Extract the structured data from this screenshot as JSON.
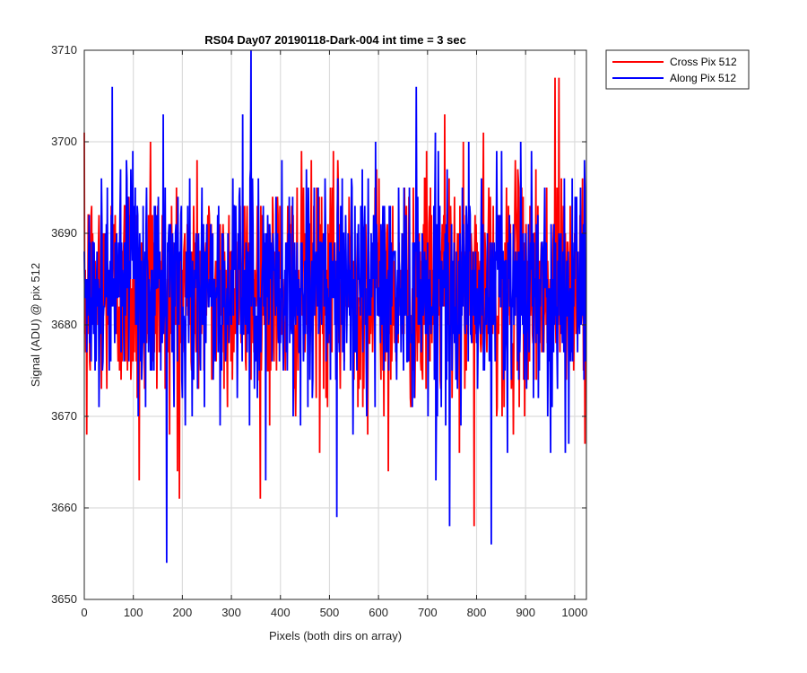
{
  "chart_data": {
    "type": "line",
    "title": "RS04 Day07 20190118-Dark-004 int time = 3 sec",
    "xlabel": "Pixels (both dirs on array)",
    "ylabel": "Signal (ADU) @ pix 512",
    "xlim": [
      0,
      1024
    ],
    "ylim": [
      3650,
      3710
    ],
    "xticks": [
      0,
      100,
      200,
      300,
      400,
      500,
      600,
      700,
      800,
      900,
      1000
    ],
    "yticks": [
      3650,
      3660,
      3670,
      3680,
      3690,
      3700,
      3710
    ],
    "grid": true,
    "legend_position": "outside-top-right",
    "series": [
      {
        "name": "Cross Pix 512",
        "color": "#ff0000",
        "summary": {
          "n_points": 1024,
          "mean": 3684,
          "min": 3658,
          "max": 3707
        },
        "notable_points": [
          [
            5,
            3668
          ],
          [
            112,
            3663
          ],
          [
            135,
            3700
          ],
          [
            190,
            3664
          ],
          [
            480,
            3666
          ],
          [
            620,
            3664
          ],
          [
            735,
            3703
          ],
          [
            795,
            3658
          ],
          [
            960,
            3707
          ],
          [
            968,
            3707
          ]
        ]
      },
      {
        "name": "Along Pix 512",
        "color": "#0000ff",
        "summary": {
          "n_points": 1024,
          "mean": 3684,
          "min": 3654,
          "max": 3710
        },
        "notable_points": [
          [
            57,
            3706
          ],
          [
            168,
            3654
          ],
          [
            340,
            3710
          ],
          [
            370,
            3663
          ],
          [
            515,
            3659
          ],
          [
            745,
            3658
          ],
          [
            830,
            3656
          ],
          [
            1020,
            3698
          ]
        ]
      }
    ]
  }
}
